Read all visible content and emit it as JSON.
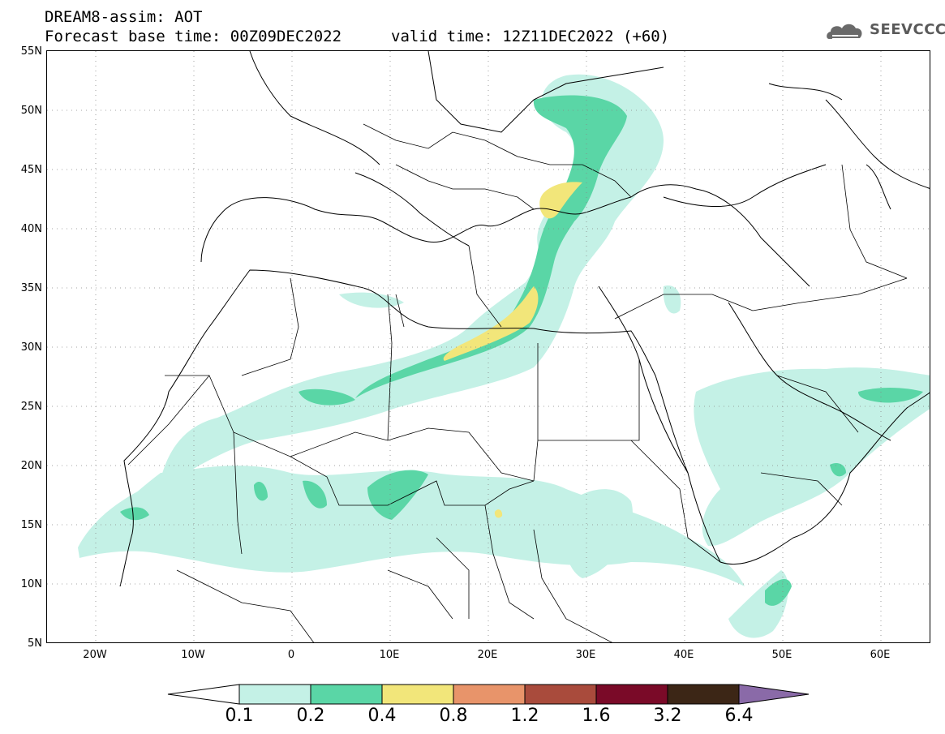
{
  "header": {
    "line1": "DREAM8-assim: AOT",
    "line2": "Forecast base time: 00Z09DEC2022",
    "valid": "valid time: 12Z11DEC2022 (+60)"
  },
  "logo": {
    "text": "SEEVCCC",
    "icon": "cloud-logo-icon"
  },
  "map": {
    "variable": "AOT",
    "lat_range": [
      5,
      55
    ],
    "lon_range": [
      -25,
      65
    ],
    "lat_labels": [
      "55N",
      "50N",
      "45N",
      "40N",
      "35N",
      "30N",
      "25N",
      "20N",
      "15N",
      "10N",
      "5N"
    ],
    "lon_labels": [
      "20W",
      "10W",
      "0",
      "10E",
      "20E",
      "30E",
      "40E",
      "50E",
      "60E"
    ],
    "grid": "dotted"
  },
  "colorbar": {
    "labels": [
      "0.1",
      "0.2",
      "0.4",
      "0.8",
      "1.2",
      "1.6",
      "3.2",
      "6.4"
    ],
    "colors": [
      "#ffffff",
      "#c4f1e6",
      "#5ad6a6",
      "#f2e67a",
      "#e8946a",
      "#a94b3c",
      "#7a0a28",
      "#3c2616",
      "#8a6aa8"
    ]
  }
}
